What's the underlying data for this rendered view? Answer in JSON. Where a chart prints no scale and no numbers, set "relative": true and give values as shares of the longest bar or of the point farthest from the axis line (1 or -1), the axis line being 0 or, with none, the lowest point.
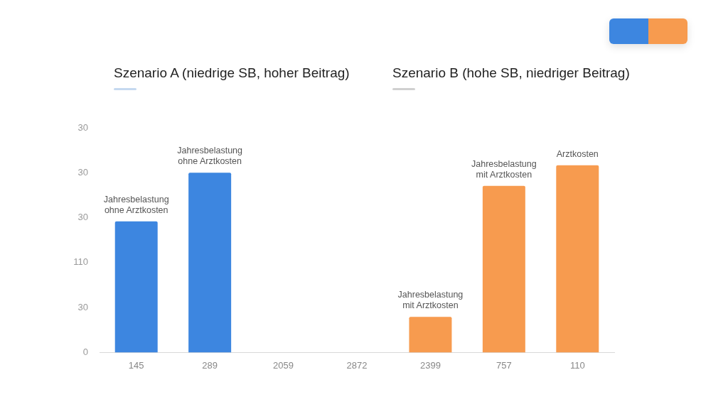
{
  "chart_data": {
    "type": "bar",
    "title": "Szenario A (niedrige SB, hoher Beitrag)",
    "subtitle": "Szenario B (hohe SB, niedriger Beitrag)",
    "categories": [
      "145",
      "289",
      "2059",
      "2872",
      "2399",
      "757",
      "110"
    ],
    "relative": true,
    "series": [
      {
        "color": "#3d86e0",
        "values": [
          0.7,
          0.96,
          null,
          null,
          null,
          null,
          null
        ]
      },
      {
        "color": "#f79b4f",
        "values": [
          null,
          null,
          null,
          null,
          0.19,
          0.89,
          1
        ]
      }
    ],
    "annotations": [
      {
        "text": "Jahresbelastung ohne Arztkosten",
        "x": "145",
        "y": 0.7
      },
      {
        "text": "Jahresbelastung ohne Arztkosten",
        "x": "289",
        "y": 0.96
      },
      {
        "text": "Jahresbelastung mit Arztkosten",
        "x": "2399",
        "y": 0.19
      },
      {
        "text": "Jahresbelastung mit Arztkosten",
        "x": "757",
        "y": 0.89
      },
      {
        "text": "Arztkosten",
        "x": "110",
        "y": 1
      },
      "30",
      "30",
      "30",
      "110",
      "30",
      "0"
    ]
  }
}
